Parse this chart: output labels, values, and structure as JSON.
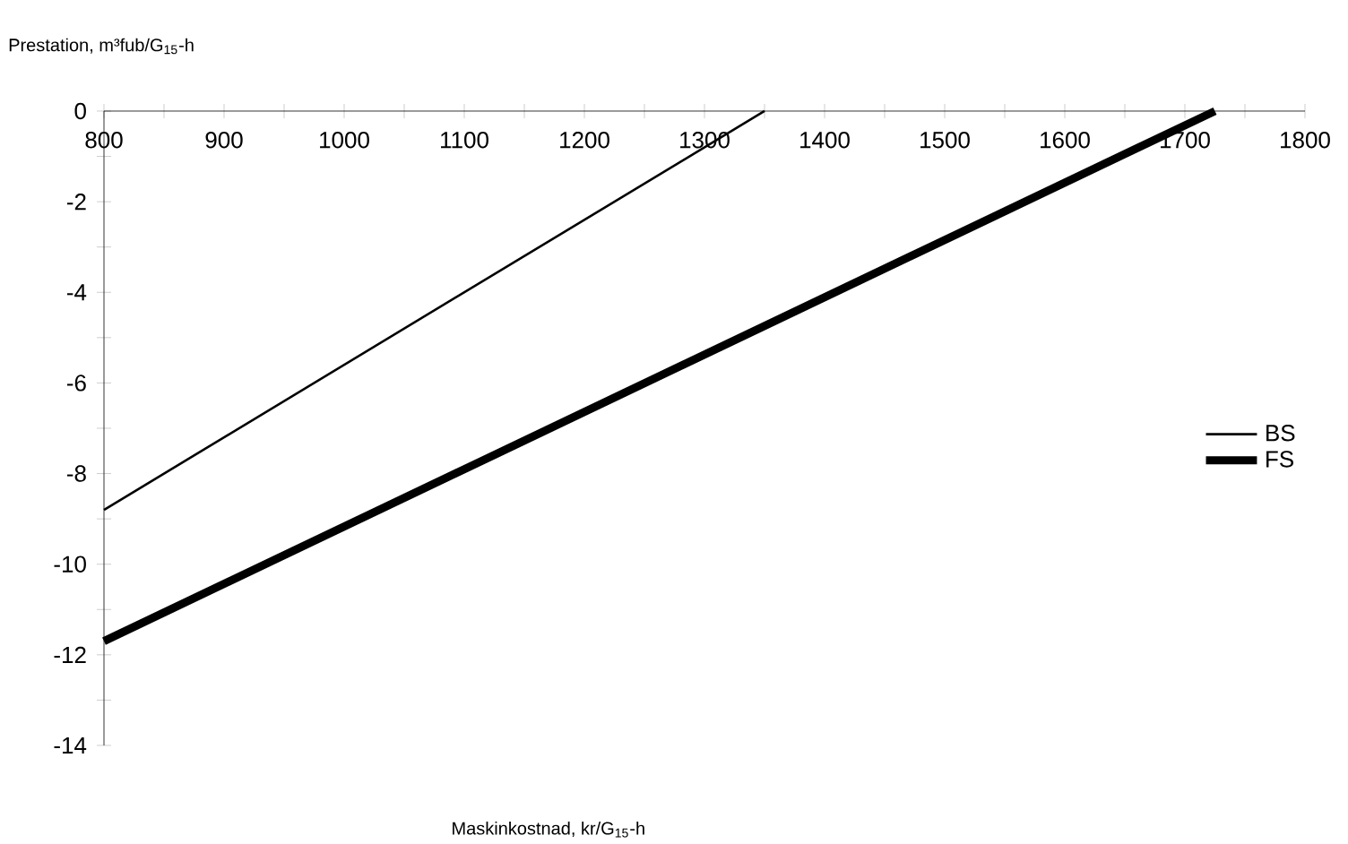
{
  "chart_data": {
    "type": "line",
    "xlabel": "Maskinkostnad, kr/G$_{15}$-h",
    "ylabel": "Prestation, m³fub/G$_{15}$-h",
    "series": [
      {
        "name": "BS",
        "color": "#000000",
        "x": [
          800,
          1350
        ],
        "values": [
          -8.8,
          0
        ]
      },
      {
        "name": "FS",
        "color": "#000000",
        "x": [
          800,
          1725
        ],
        "values": [
          -11.7,
          0
        ]
      }
    ],
    "xlim": [
      800,
      1800
    ],
    "ylim": [
      -14,
      0
    ],
    "xticks": [
      800,
      {
        "value": 850,
        "label": null
      },
      900,
      {
        "value": 950,
        "label": null
      },
      1000,
      {
        "value": 1050,
        "label": null
      },
      1100,
      {
        "value": 1150,
        "label": null
      },
      1200,
      {
        "value": 1250,
        "label": null
      },
      1300,
      {
        "value": 1350,
        "label": null
      },
      1400,
      {
        "value": 1450,
        "label": null
      },
      1500,
      {
        "value": 1550,
        "label": null
      },
      1600,
      {
        "value": 1650,
        "label": null
      },
      1700,
      {
        "value": 1750,
        "label": null
      },
      1800
    ],
    "yticks": [
      -14,
      {
        "value": -13,
        "label": null
      },
      -12,
      {
        "value": -11,
        "label": null
      },
      -10,
      {
        "value": -9,
        "label": null
      },
      -8,
      {
        "value": -7,
        "label": null
      },
      -6,
      {
        "value": -5,
        "label": null
      },
      -4,
      {
        "value": -3,
        "label": null
      },
      -2,
      {
        "value": -1,
        "label": null
      },
      0
    ],
    "grid": false,
    "legend": "right",
    "marker": "none",
    "line_style": "solid"
  }
}
